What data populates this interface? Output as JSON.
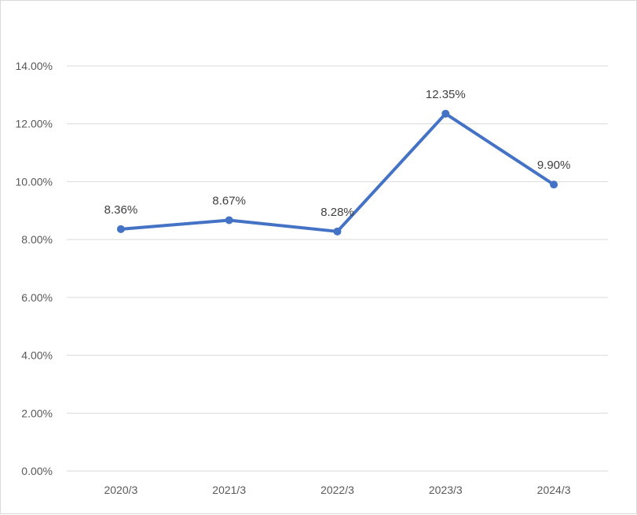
{
  "chart_data": {
    "type": "line",
    "title": "",
    "xlabel": "",
    "ylabel": "",
    "categories": [
      "2020/3",
      "2021/3",
      "2022/3",
      "2023/3",
      "2024/3"
    ],
    "series": [
      {
        "values": [
          8.36,
          8.67,
          8.28,
          12.35,
          9.9
        ],
        "data_labels": [
          "8.36%",
          "8.67%",
          "8.28%",
          "12.35%",
          "9.90%"
        ],
        "color": "#4472c4"
      }
    ],
    "ylim": [
      0,
      14
    ],
    "yticks": [
      0,
      2,
      4,
      6,
      8,
      10,
      12,
      14
    ],
    "ytick_labels": [
      "0.00%",
      "2.00%",
      "4.00%",
      "6.00%",
      "8.00%",
      "10.00%",
      "12.00%",
      "14.00%"
    ],
    "grid": true,
    "legend": "none",
    "colors": {
      "gridline": "#d9d9d9",
      "text": "#595959",
      "series": "#4472c4"
    }
  }
}
